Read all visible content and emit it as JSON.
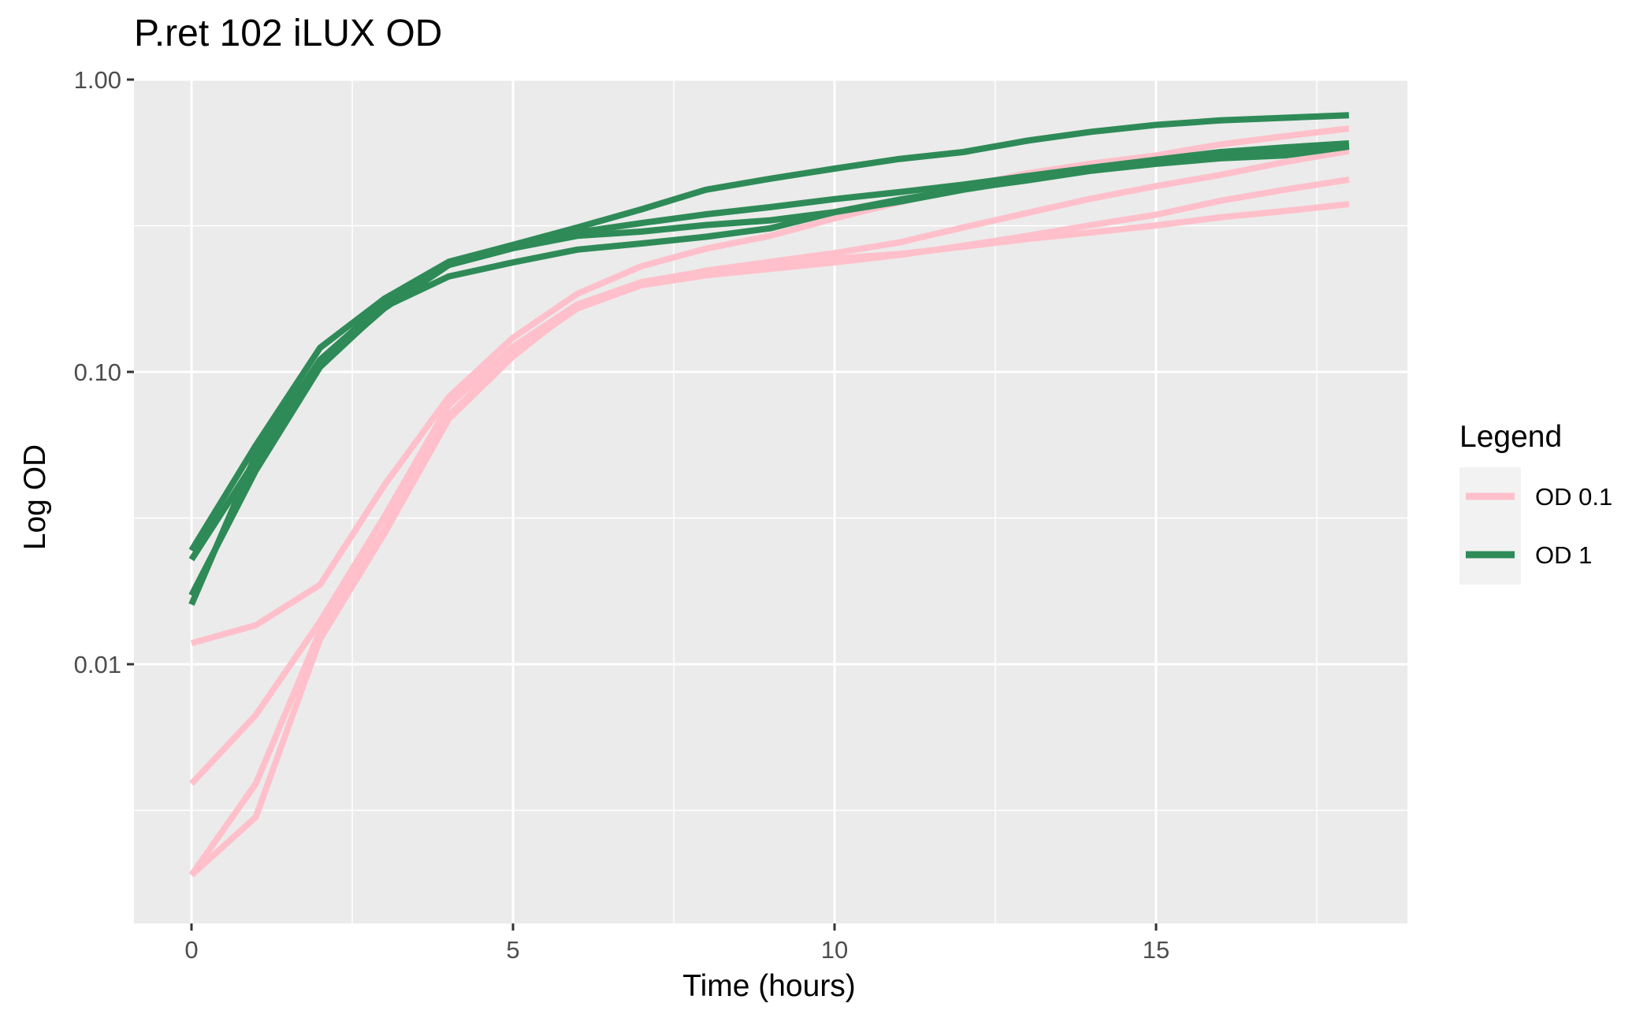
{
  "chart_data": {
    "type": "line",
    "title": "P.ret 102 iLUX OD",
    "xlabel": "Time (hours)",
    "ylabel": "Log OD",
    "x_scale": "linear",
    "y_scale": "log10",
    "xlim": [
      -0.9,
      18.9
    ],
    "ylim": [
      0.0014,
      1.0
    ],
    "x_ticks": [
      0,
      5,
      10,
      15
    ],
    "x_tick_labels": [
      "0",
      "5",
      "10",
      "15"
    ],
    "y_ticks": [
      0.01,
      0.1,
      1.0
    ],
    "y_tick_labels": [
      "0.01",
      "0.10",
      "1.00"
    ],
    "grid": true,
    "legend": {
      "title": "Legend",
      "position": "right",
      "entries": [
        {
          "label": "OD 0.1",
          "color": "#FFC0CB"
        },
        {
          "label": "OD 1",
          "color": "#2E8B57"
        }
      ]
    },
    "x": [
      0,
      1,
      2,
      3,
      4,
      5,
      6,
      7,
      8,
      9,
      10,
      11,
      12,
      13,
      14,
      15,
      16,
      17,
      18
    ],
    "series": [
      {
        "group": "OD 0.1",
        "color": "#FFC0CB",
        "values": [
          0.0118,
          0.0136,
          0.0187,
          0.041,
          0.082,
          0.131,
          0.185,
          0.23,
          0.264,
          0.292,
          0.335,
          0.38,
          0.428,
          0.478,
          0.516,
          0.55,
          0.6,
          0.64,
          0.68
        ]
      },
      {
        "group": "OD 0.1",
        "color": "#FFC0CB",
        "values": [
          0.0039,
          0.0067,
          0.014,
          0.032,
          0.077,
          0.122,
          0.17,
          0.203,
          0.221,
          0.231,
          0.244,
          0.253,
          0.268,
          0.285,
          0.3,
          0.317,
          0.338,
          0.355,
          0.375
        ]
      },
      {
        "group": "OD 0.1",
        "color": "#FFC0CB",
        "values": [
          0.0019,
          0.0039,
          0.013,
          0.029,
          0.071,
          0.116,
          0.165,
          0.198,
          0.214,
          0.225,
          0.237,
          0.251,
          0.27,
          0.292,
          0.318,
          0.345,
          0.385,
          0.42,
          0.455
        ]
      },
      {
        "group": "OD 0.1",
        "color": "#FFC0CB",
        "values": [
          0.0019,
          0.003,
          0.0122,
          0.028,
          0.069,
          0.113,
          0.168,
          0.199,
          0.222,
          0.238,
          0.255,
          0.277,
          0.312,
          0.35,
          0.392,
          0.432,
          0.472,
          0.522,
          0.57
        ]
      },
      {
        "group": "OD 1",
        "color": "#2E8B57",
        "values": [
          0.0245,
          0.056,
          0.121,
          0.178,
          0.238,
          0.272,
          0.312,
          0.36,
          0.42,
          0.458,
          0.496,
          0.535,
          0.565,
          0.618,
          0.663,
          0.7,
          0.725,
          0.74,
          0.755
        ]
      },
      {
        "group": "OD 1",
        "color": "#2E8B57",
        "values": [
          0.0228,
          0.05,
          0.106,
          0.165,
          0.232,
          0.265,
          0.292,
          0.302,
          0.318,
          0.33,
          0.352,
          0.382,
          0.42,
          0.455,
          0.49,
          0.52,
          0.548,
          0.57,
          0.6
        ]
      },
      {
        "group": "OD 1",
        "color": "#2E8B57",
        "values": [
          0.0172,
          0.046,
          0.104,
          0.167,
          0.212,
          0.237,
          0.262,
          0.275,
          0.29,
          0.31,
          0.352,
          0.388,
          0.422,
          0.452,
          0.488,
          0.515,
          0.538,
          0.55,
          0.59
        ]
      },
      {
        "group": "OD 1",
        "color": "#2E8B57",
        "values": [
          0.016,
          0.052,
          0.11,
          0.172,
          0.235,
          0.268,
          0.3,
          0.323,
          0.346,
          0.366,
          0.39,
          0.412,
          0.437,
          0.468,
          0.5,
          0.532,
          0.565,
          0.586,
          0.605
        ]
      }
    ]
  }
}
